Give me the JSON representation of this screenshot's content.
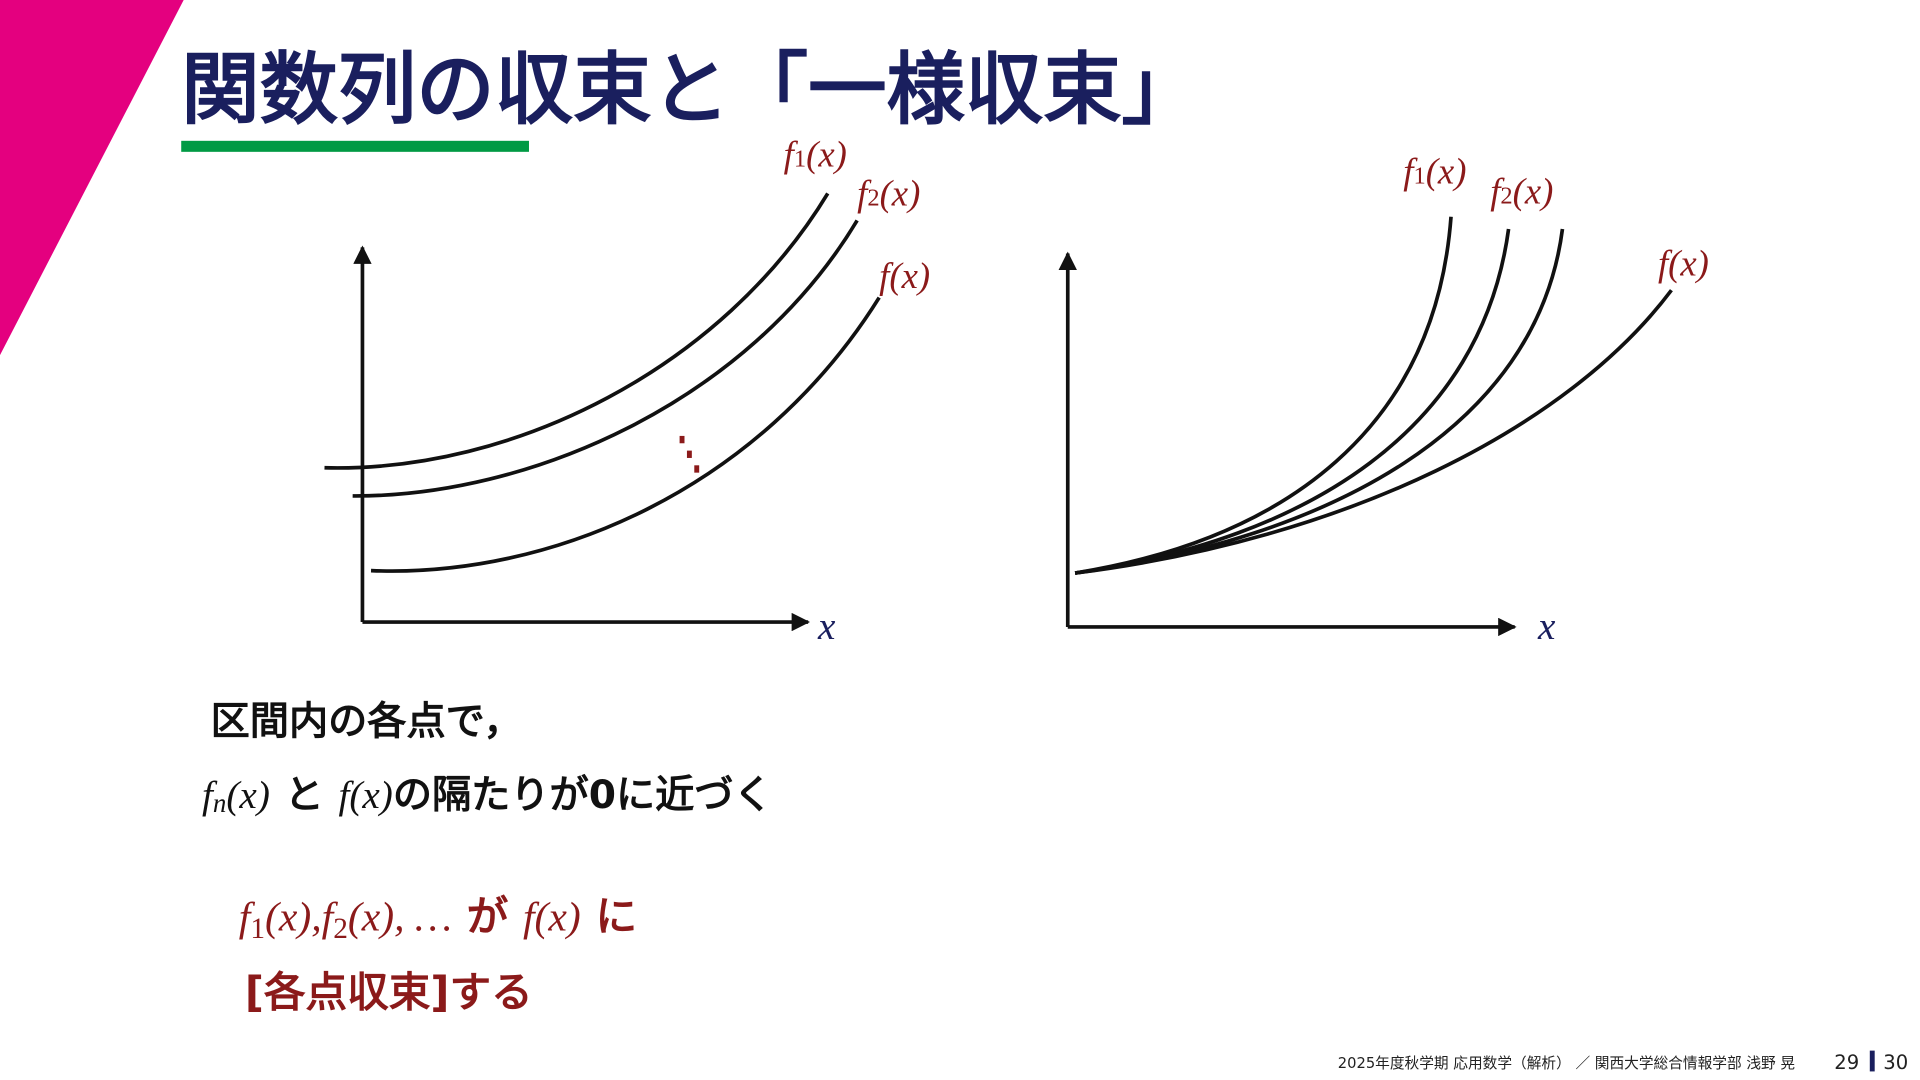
{
  "title": "関数列の収束と「一様収束」",
  "left_graph": {
    "labels": [
      {
        "f": "f",
        "sub": "1",
        "arg": "(x)"
      },
      {
        "f": "f",
        "sub": "2",
        "arg": "(x)"
      },
      {
        "f": "f",
        "arg": "(x)"
      }
    ],
    "axis_label": "x"
  },
  "right_graph": {
    "labels": [
      {
        "f": "f",
        "sub": "1",
        "arg": "(x)"
      },
      {
        "f": "f",
        "sub": "2",
        "arg": "(x)"
      },
      {
        "f": "f",
        "arg": "(x)"
      }
    ],
    "axis_label": "x"
  },
  "body": {
    "line1": "区間内の各点で，",
    "line2": {
      "fn": "f",
      "sub": "n",
      "arg": "(x)",
      "to": "と",
      "f": "f",
      "f_arg": "(x)",
      "rest": "の隔たりが0に近づく"
    }
  },
  "conclusion": {
    "line1": {
      "f1": "f",
      "sub1": "1",
      "arg1": "(x),",
      "f2": "f",
      "sub2": "2",
      "arg2": "(x), …",
      "ga": "が",
      "f": "f",
      "f_arg": "(x)",
      "ni": "に"
    },
    "line2": "[各点収束]する"
  },
  "footer": {
    "course": "2025年度秋学期 応用数学（解析） ／ 関西大学総合情報学部 浅野 晃",
    "page": "29",
    "total": "30"
  }
}
